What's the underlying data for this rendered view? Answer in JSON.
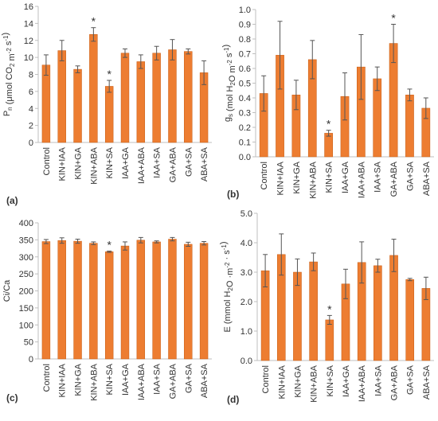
{
  "colors": {
    "bar": "#ED7D31",
    "bar_edge": "#C55A11",
    "error": "#555555",
    "axis": "#bfbfbf",
    "grid": "#d9d9d9",
    "text": "#333333"
  },
  "chart_data": [
    {
      "panel_label": "(a)",
      "type": "bar",
      "ylabel": {
        "main": "P",
        "sub": "n",
        "rest": " (μmol CO",
        "sub2": "2",
        "rest2": " m",
        "sup": "-2",
        "rest3": " s",
        "sup2": "-1",
        "rest4": ")"
      },
      "ylim": [
        0,
        16
      ],
      "yticks": [
        0,
        2,
        4,
        6,
        8,
        10,
        12,
        14,
        16
      ],
      "tick_format": "int",
      "categories": [
        "Control",
        "KIN+IAA",
        "KIN+GA",
        "KIN+ABA",
        "KIN+SA",
        "IAA+GA",
        "IAA+ABA",
        "IAA+SA",
        "GA+ABA",
        "GA+SA",
        "ABA+SA"
      ],
      "values": [
        9.1,
        10.8,
        8.6,
        12.7,
        6.6,
        10.5,
        9.5,
        10.5,
        10.9,
        10.7,
        8.2
      ],
      "errors": [
        1.2,
        1.2,
        0.4,
        0.8,
        0.7,
        0.5,
        0.8,
        0.8,
        1.2,
        0.3,
        1.4
      ],
      "significant": [
        false,
        false,
        false,
        true,
        true,
        false,
        false,
        false,
        false,
        false,
        false
      ],
      "significance_mark": "*"
    },
    {
      "panel_label": "(b)",
      "type": "bar",
      "ylabel": {
        "main": "g",
        "sub": "s",
        "rest": " (mol H",
        "sub2": "2",
        "rest2": "O m",
        "sup": "-2",
        "rest3": " s",
        "sup2": "-1",
        "rest4": ")"
      },
      "ylim": [
        0,
        1.0
      ],
      "yticks": [
        0.0,
        0.1,
        0.2,
        0.3,
        0.4,
        0.5,
        0.6,
        0.7,
        0.8,
        0.9,
        1.0
      ],
      "tick_format": "1",
      "categories": [
        "Control",
        "KIN+IAA",
        "KIN+GA",
        "KIN+ABA",
        "KIN+SA",
        "IAA+GA",
        "IAA+ABA",
        "IAA+SA",
        "GA+ABA",
        "GA+SA",
        "ABA+SA"
      ],
      "values": [
        0.43,
        0.69,
        0.42,
        0.66,
        0.16,
        0.41,
        0.61,
        0.53,
        0.77,
        0.42,
        0.33
      ],
      "errors": [
        0.12,
        0.23,
        0.1,
        0.13,
        0.02,
        0.16,
        0.22,
        0.08,
        0.13,
        0.04,
        0.07
      ],
      "significant": [
        false,
        false,
        false,
        false,
        true,
        false,
        false,
        false,
        true,
        false,
        false
      ],
      "significance_mark": "*"
    },
    {
      "panel_label": "(c)",
      "type": "bar",
      "ylabel": {
        "main": "Ci/Ca",
        "sub": "",
        "rest": "",
        "sub2": "",
        "rest2": "",
        "sup": "",
        "rest3": "",
        "sup2": "",
        "rest4": ""
      },
      "ylim": [
        0,
        400
      ],
      "yticks": [
        0,
        50,
        100,
        150,
        200,
        250,
        300,
        350,
        400
      ],
      "tick_format": "int",
      "categories": [
        "Control",
        "KIN+IAA",
        "KIN+GA",
        "KIN+ABA",
        "KIN+SA",
        "IAA+GA",
        "IAA+ABA",
        "IAA+SA",
        "GA+ABA",
        "GA+SA",
        "ABA+SA"
      ],
      "values": [
        345,
        348,
        346,
        340,
        315,
        332,
        349,
        344,
        352,
        337,
        340
      ],
      "errors": [
        6,
        8,
        6,
        4,
        2,
        12,
        8,
        3,
        5,
        6,
        5
      ],
      "significant": [
        false,
        false,
        false,
        false,
        true,
        false,
        false,
        false,
        false,
        false,
        false
      ],
      "significance_mark": "*"
    },
    {
      "panel_label": "(d)",
      "type": "bar",
      "ylabel": {
        "main": "E (mmol H",
        "sub": "2",
        "rest": "O ·m",
        "sub2": "",
        "rest2": "",
        "sup": "-2",
        "rest3": " · s",
        "sup2": "-1",
        "rest4": ")"
      },
      "ylim": [
        0,
        5.0
      ],
      "yticks": [
        0.0,
        1.0,
        2.0,
        3.0,
        4.0,
        5.0
      ],
      "tick_format": "1",
      "categories": [
        "Control",
        "KIN+IAA",
        "KIN+GA",
        "KIN+ABA",
        "KIN+SA",
        "IAA+GA",
        "IAA+ABA",
        "IAA+SA",
        "GA+ABA",
        "GA+SA",
        "ABA+SA"
      ],
      "values": [
        3.05,
        3.6,
        3.0,
        3.35,
        1.38,
        2.6,
        3.33,
        3.22,
        3.57,
        2.75,
        2.45
      ],
      "errors": [
        0.55,
        0.7,
        0.45,
        0.3,
        0.15,
        0.5,
        0.7,
        0.22,
        0.55,
        0.04,
        0.38
      ],
      "significant": [
        false,
        false,
        false,
        false,
        true,
        false,
        false,
        false,
        false,
        false,
        false
      ],
      "significance_mark": "*"
    }
  ]
}
